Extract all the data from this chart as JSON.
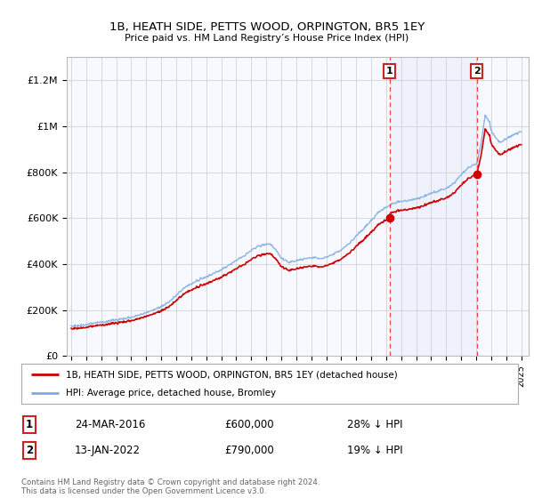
{
  "title": "1B, HEATH SIDE, PETTS WOOD, ORPINGTON, BR5 1EY",
  "subtitle": "Price paid vs. HM Land Registry’s House Price Index (HPI)",
  "yticks": [
    0,
    200000,
    400000,
    600000,
    800000,
    1000000,
    1200000
  ],
  "ytick_labels": [
    "£0",
    "£200K",
    "£400K",
    "£600K",
    "£800K",
    "£1M",
    "£1.2M"
  ],
  "line1_color": "#cc0000",
  "line2_color": "#7aace0",
  "marker1_date": 2016.23,
  "marker2_date": 2022.04,
  "marker1_price": 600000,
  "marker2_price": 790000,
  "marker1_label": "24-MAR-2016",
  "marker2_label": "13-JAN-2022",
  "marker1_hpi": "28% ↓ HPI",
  "marker2_hpi": "19% ↓ HPI",
  "legend_label1": "1B, HEATH SIDE, PETTS WOOD, ORPINGTON, BR5 1EY (detached house)",
  "legend_label2": "HPI: Average price, detached house, Bromley",
  "footer": "Contains HM Land Registry data © Crown copyright and database right 2024.\nThis data is licensed under the Open Government Licence v3.0.",
  "background_color": "#ffffff",
  "plot_bg_color": "#f8f8ff",
  "grid_color": "#cccccc",
  "shade_color": "#ddeeff"
}
